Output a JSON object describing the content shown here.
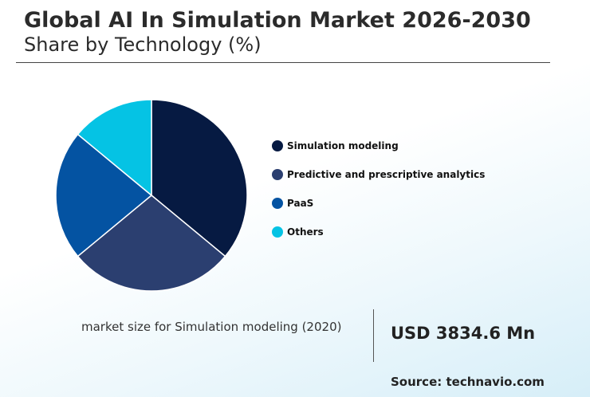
{
  "header": {
    "title": "Global AI In Simulation Market 2026-2030",
    "subtitle": "Share by Technology (%)"
  },
  "chart_data": {
    "type": "pie",
    "title": "Global AI In Simulation Market 2026-2030",
    "subtitle": "Share by Technology (%)",
    "labels": [
      "Simulation modeling",
      "Predictive and prescriptive analytics",
      "PaaS",
      "Others"
    ],
    "values": [
      36,
      28,
      22,
      14
    ],
    "colors": [
      "#061a42",
      "#2b3f70",
      "#0453a2",
      "#05c3e4"
    ],
    "legend": "right"
  },
  "footer": {
    "market_label": "market size for Simulation modeling (2020)",
    "market_value": "USD 3834.6 Mn",
    "source": "Source: technavio.com"
  }
}
